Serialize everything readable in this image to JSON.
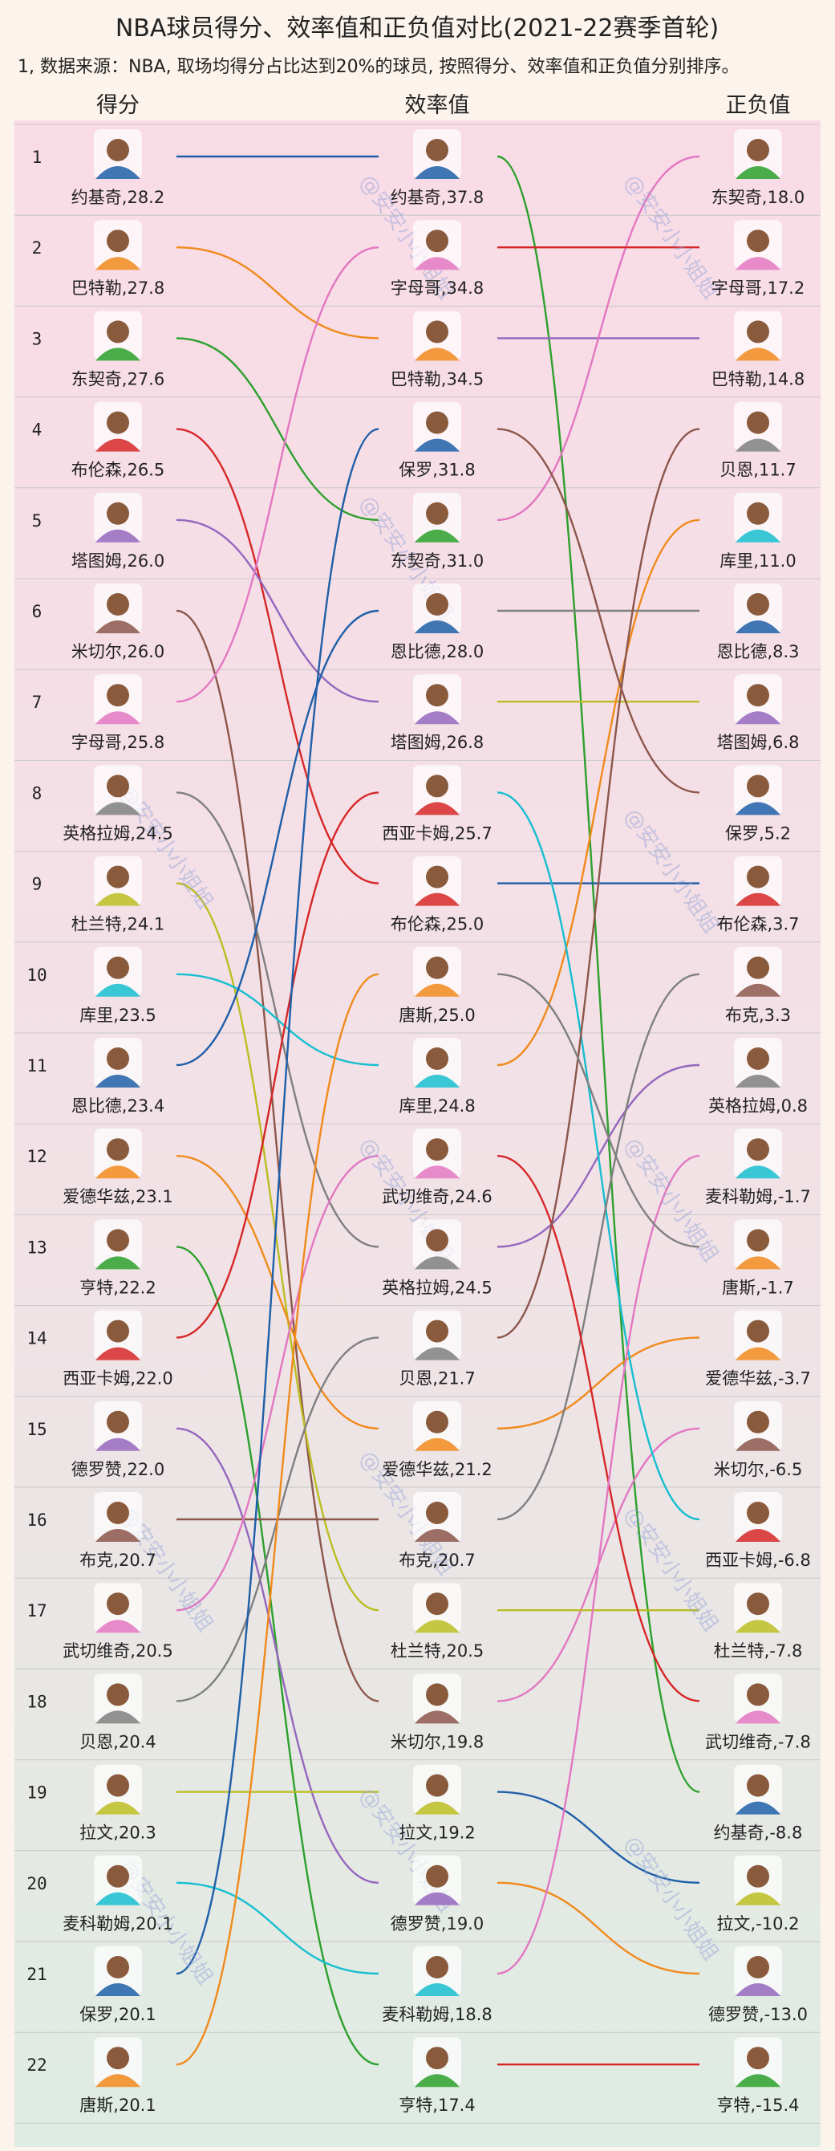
{
  "title": "NBA球员得分、效率值和正负值对比(2021-22赛季首轮)",
  "subtitle": "1, 数据来源：NBA, 取场均得分占比达到20%的球员, 按照得分、效率值和正负值分别排序。",
  "watermark": "@安安小小姐姐",
  "columns": [
    "得分",
    "效率值",
    "正负值"
  ],
  "colors": {
    "background": "#fbf3ec",
    "row_pink": "#f8dfe8",
    "row_green": "#e4eee4",
    "grid": "#c8c8c8"
  },
  "chart_data": {
    "type": "bump",
    "ranks": [
      1,
      2,
      3,
      4,
      5,
      6,
      7,
      8,
      9,
      10,
      11,
      12,
      13,
      14,
      15,
      16,
      17,
      18,
      19,
      20,
      21,
      22
    ],
    "players": [
      {
        "name": "约基奇",
        "points": "28.2",
        "efficiency": "37.8",
        "plus_minus": "-8.8",
        "rank_points": 1,
        "rank_efficiency": 1,
        "rank_plus_minus": 19,
        "color": "#1f5fa8"
      },
      {
        "name": "巴特勒",
        "points": "27.8",
        "efficiency": "34.5",
        "plus_minus": "14.8",
        "rank_points": 2,
        "rank_efficiency": 3,
        "rank_plus_minus": 3,
        "color": "#f08a1c"
      },
      {
        "name": "东契奇",
        "points": "27.6",
        "efficiency": "31.0",
        "plus_minus": "18.0",
        "rank_points": 3,
        "rank_efficiency": 5,
        "rank_plus_minus": 1,
        "color": "#2ca02c"
      },
      {
        "name": "布伦森",
        "points": "26.5",
        "efficiency": "25.0",
        "plus_minus": "3.7",
        "rank_points": 4,
        "rank_efficiency": 9,
        "rank_plus_minus": 9,
        "color": "#d62728"
      },
      {
        "name": "塔图姆",
        "points": "26.0",
        "efficiency": "26.8",
        "plus_minus": "6.8",
        "rank_points": 5,
        "rank_efficiency": 7,
        "rank_plus_minus": 7,
        "color": "#9467bd"
      },
      {
        "name": "米切尔",
        "points": "26.0",
        "efficiency": "19.8",
        "plus_minus": "-6.5",
        "rank_points": 6,
        "rank_efficiency": 18,
        "rank_plus_minus": 15,
        "color": "#8c564b"
      },
      {
        "name": "字母哥",
        "points": "25.8",
        "efficiency": "34.8",
        "plus_minus": "17.2",
        "rank_points": 7,
        "rank_efficiency": 2,
        "rank_plus_minus": 2,
        "color": "#e377c2"
      },
      {
        "name": "英格拉姆",
        "points": "24.5",
        "efficiency": "24.5",
        "plus_minus": "0.8",
        "rank_points": 8,
        "rank_efficiency": 13,
        "rank_plus_minus": 11,
        "color": "#7f7f7f"
      },
      {
        "name": "杜兰特",
        "points": "24.1",
        "efficiency": "20.5",
        "plus_minus": "-7.8",
        "rank_points": 9,
        "rank_efficiency": 17,
        "rank_plus_minus": 17,
        "color": "#bcbd22"
      },
      {
        "name": "库里",
        "points": "23.5",
        "efficiency": "24.8",
        "plus_minus": "11.0",
        "rank_points": 10,
        "rank_efficiency": 11,
        "rank_plus_minus": 5,
        "color": "#17becf"
      },
      {
        "name": "恩比德",
        "points": "23.4",
        "efficiency": "28.0",
        "plus_minus": "8.3",
        "rank_points": 11,
        "rank_efficiency": 6,
        "rank_plus_minus": 6,
        "color": "#1f5fa8"
      },
      {
        "name": "爱德华兹",
        "points": "23.1",
        "efficiency": "21.2",
        "plus_minus": "-3.7",
        "rank_points": 12,
        "rank_efficiency": 15,
        "rank_plus_minus": 14,
        "color": "#f08a1c"
      },
      {
        "name": "亨特",
        "points": "22.2",
        "efficiency": "17.4",
        "plus_minus": "-15.4",
        "rank_points": 13,
        "rank_efficiency": 22,
        "rank_plus_minus": 22,
        "color": "#2ca02c"
      },
      {
        "name": "西亚卡姆",
        "points": "22.0",
        "efficiency": "25.7",
        "plus_minus": "-6.8",
        "rank_points": 14,
        "rank_efficiency": 8,
        "rank_plus_minus": 16,
        "color": "#d62728"
      },
      {
        "name": "德罗赞",
        "points": "22.0",
        "efficiency": "19.0",
        "plus_minus": "-13.0",
        "rank_points": 15,
        "rank_efficiency": 20,
        "rank_plus_minus": 21,
        "color": "#9467bd"
      },
      {
        "name": "布克",
        "points": "20.7",
        "efficiency": "20.7",
        "plus_minus": "3.3",
        "rank_points": 16,
        "rank_efficiency": 16,
        "rank_plus_minus": 10,
        "color": "#8c564b"
      },
      {
        "name": "武切维奇",
        "points": "20.5",
        "efficiency": "24.6",
        "plus_minus": "-7.8",
        "rank_points": 17,
        "rank_efficiency": 12,
        "rank_plus_minus": 18,
        "color": "#e377c2"
      },
      {
        "name": "贝恩",
        "points": "20.4",
        "efficiency": "21.7",
        "plus_minus": "11.7",
        "rank_points": 18,
        "rank_efficiency": 14,
        "rank_plus_minus": 4,
        "color": "#7f7f7f"
      },
      {
        "name": "拉文",
        "points": "20.3",
        "efficiency": "19.2",
        "plus_minus": "-10.2",
        "rank_points": 19,
        "rank_efficiency": 19,
        "rank_plus_minus": 20,
        "color": "#bcbd22"
      },
      {
        "name": "麦科勒姆",
        "points": "20.1",
        "efficiency": "18.8",
        "plus_minus": "-1.7",
        "rank_points": 20,
        "rank_efficiency": 21,
        "rank_plus_minus": 12,
        "color": "#17becf"
      },
      {
        "name": "保罗",
        "points": "20.1",
        "efficiency": "31.8",
        "plus_minus": "5.2",
        "rank_points": 21,
        "rank_efficiency": 4,
        "rank_plus_minus": 8,
        "color": "#1f5fa8"
      },
      {
        "name": "唐斯",
        "points": "20.1",
        "efficiency": "25.0",
        "plus_minus": "-1.7",
        "rank_points": 22,
        "rank_efficiency": 10,
        "rank_plus_minus": 13,
        "color": "#f08a1c"
      }
    ],
    "plus_minus_order_colors": [
      "#e377c2",
      "#d62728",
      "#9467bd",
      "#8c564b",
      "#f08a1c",
      "#7f7f7f",
      "#bcbd22",
      "#8c564b",
      "#1f5fa8",
      "#7f7f7f",
      "#9467bd",
      "#e377c2",
      "#7f7f7f",
      "#f08a1c",
      "#e377c2",
      "#17becf",
      "#bcbd22",
      "#d62728",
      "#2ca02c",
      "#1f5fa8",
      "#f08a1c",
      "#d62728"
    ]
  }
}
